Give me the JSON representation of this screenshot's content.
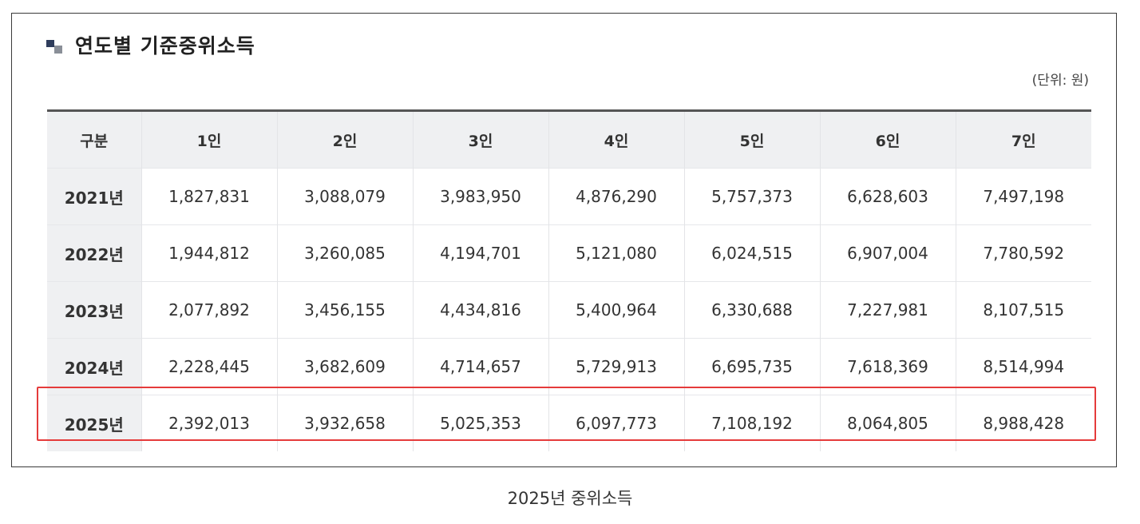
{
  "title": "연도별 기준중위소득",
  "unit_note": "(단위: 원)",
  "table": {
    "headers": [
      "구분",
      "1인",
      "2인",
      "3인",
      "4인",
      "5인",
      "6인",
      "7인"
    ],
    "rows": [
      {
        "year": "2021년",
        "values": [
          "1,827,831",
          "3,088,079",
          "3,983,950",
          "4,876,290",
          "5,757,373",
          "6,628,603",
          "7,497,198"
        ]
      },
      {
        "year": "2022년",
        "values": [
          "1,944,812",
          "3,260,085",
          "4,194,701",
          "5,121,080",
          "6,024,515",
          "6,907,004",
          "7,780,592"
        ]
      },
      {
        "year": "2023년",
        "values": [
          "2,077,892",
          "3,456,155",
          "4,434,816",
          "5,400,964",
          "6,330,688",
          "7,227,981",
          "8,107,515"
        ]
      },
      {
        "year": "2024년",
        "values": [
          "2,228,445",
          "3,682,609",
          "4,714,657",
          "5,729,913",
          "6,695,735",
          "7,618,369",
          "8,514,994"
        ]
      },
      {
        "year": "2025년",
        "values": [
          "2,392,013",
          "3,932,658",
          "5,025,353",
          "6,097,773",
          "7,108,192",
          "8,064,805",
          "8,988,428"
        ]
      }
    ]
  },
  "highlight_color": "#e53b3b",
  "caption": "2025년 중위소득"
}
